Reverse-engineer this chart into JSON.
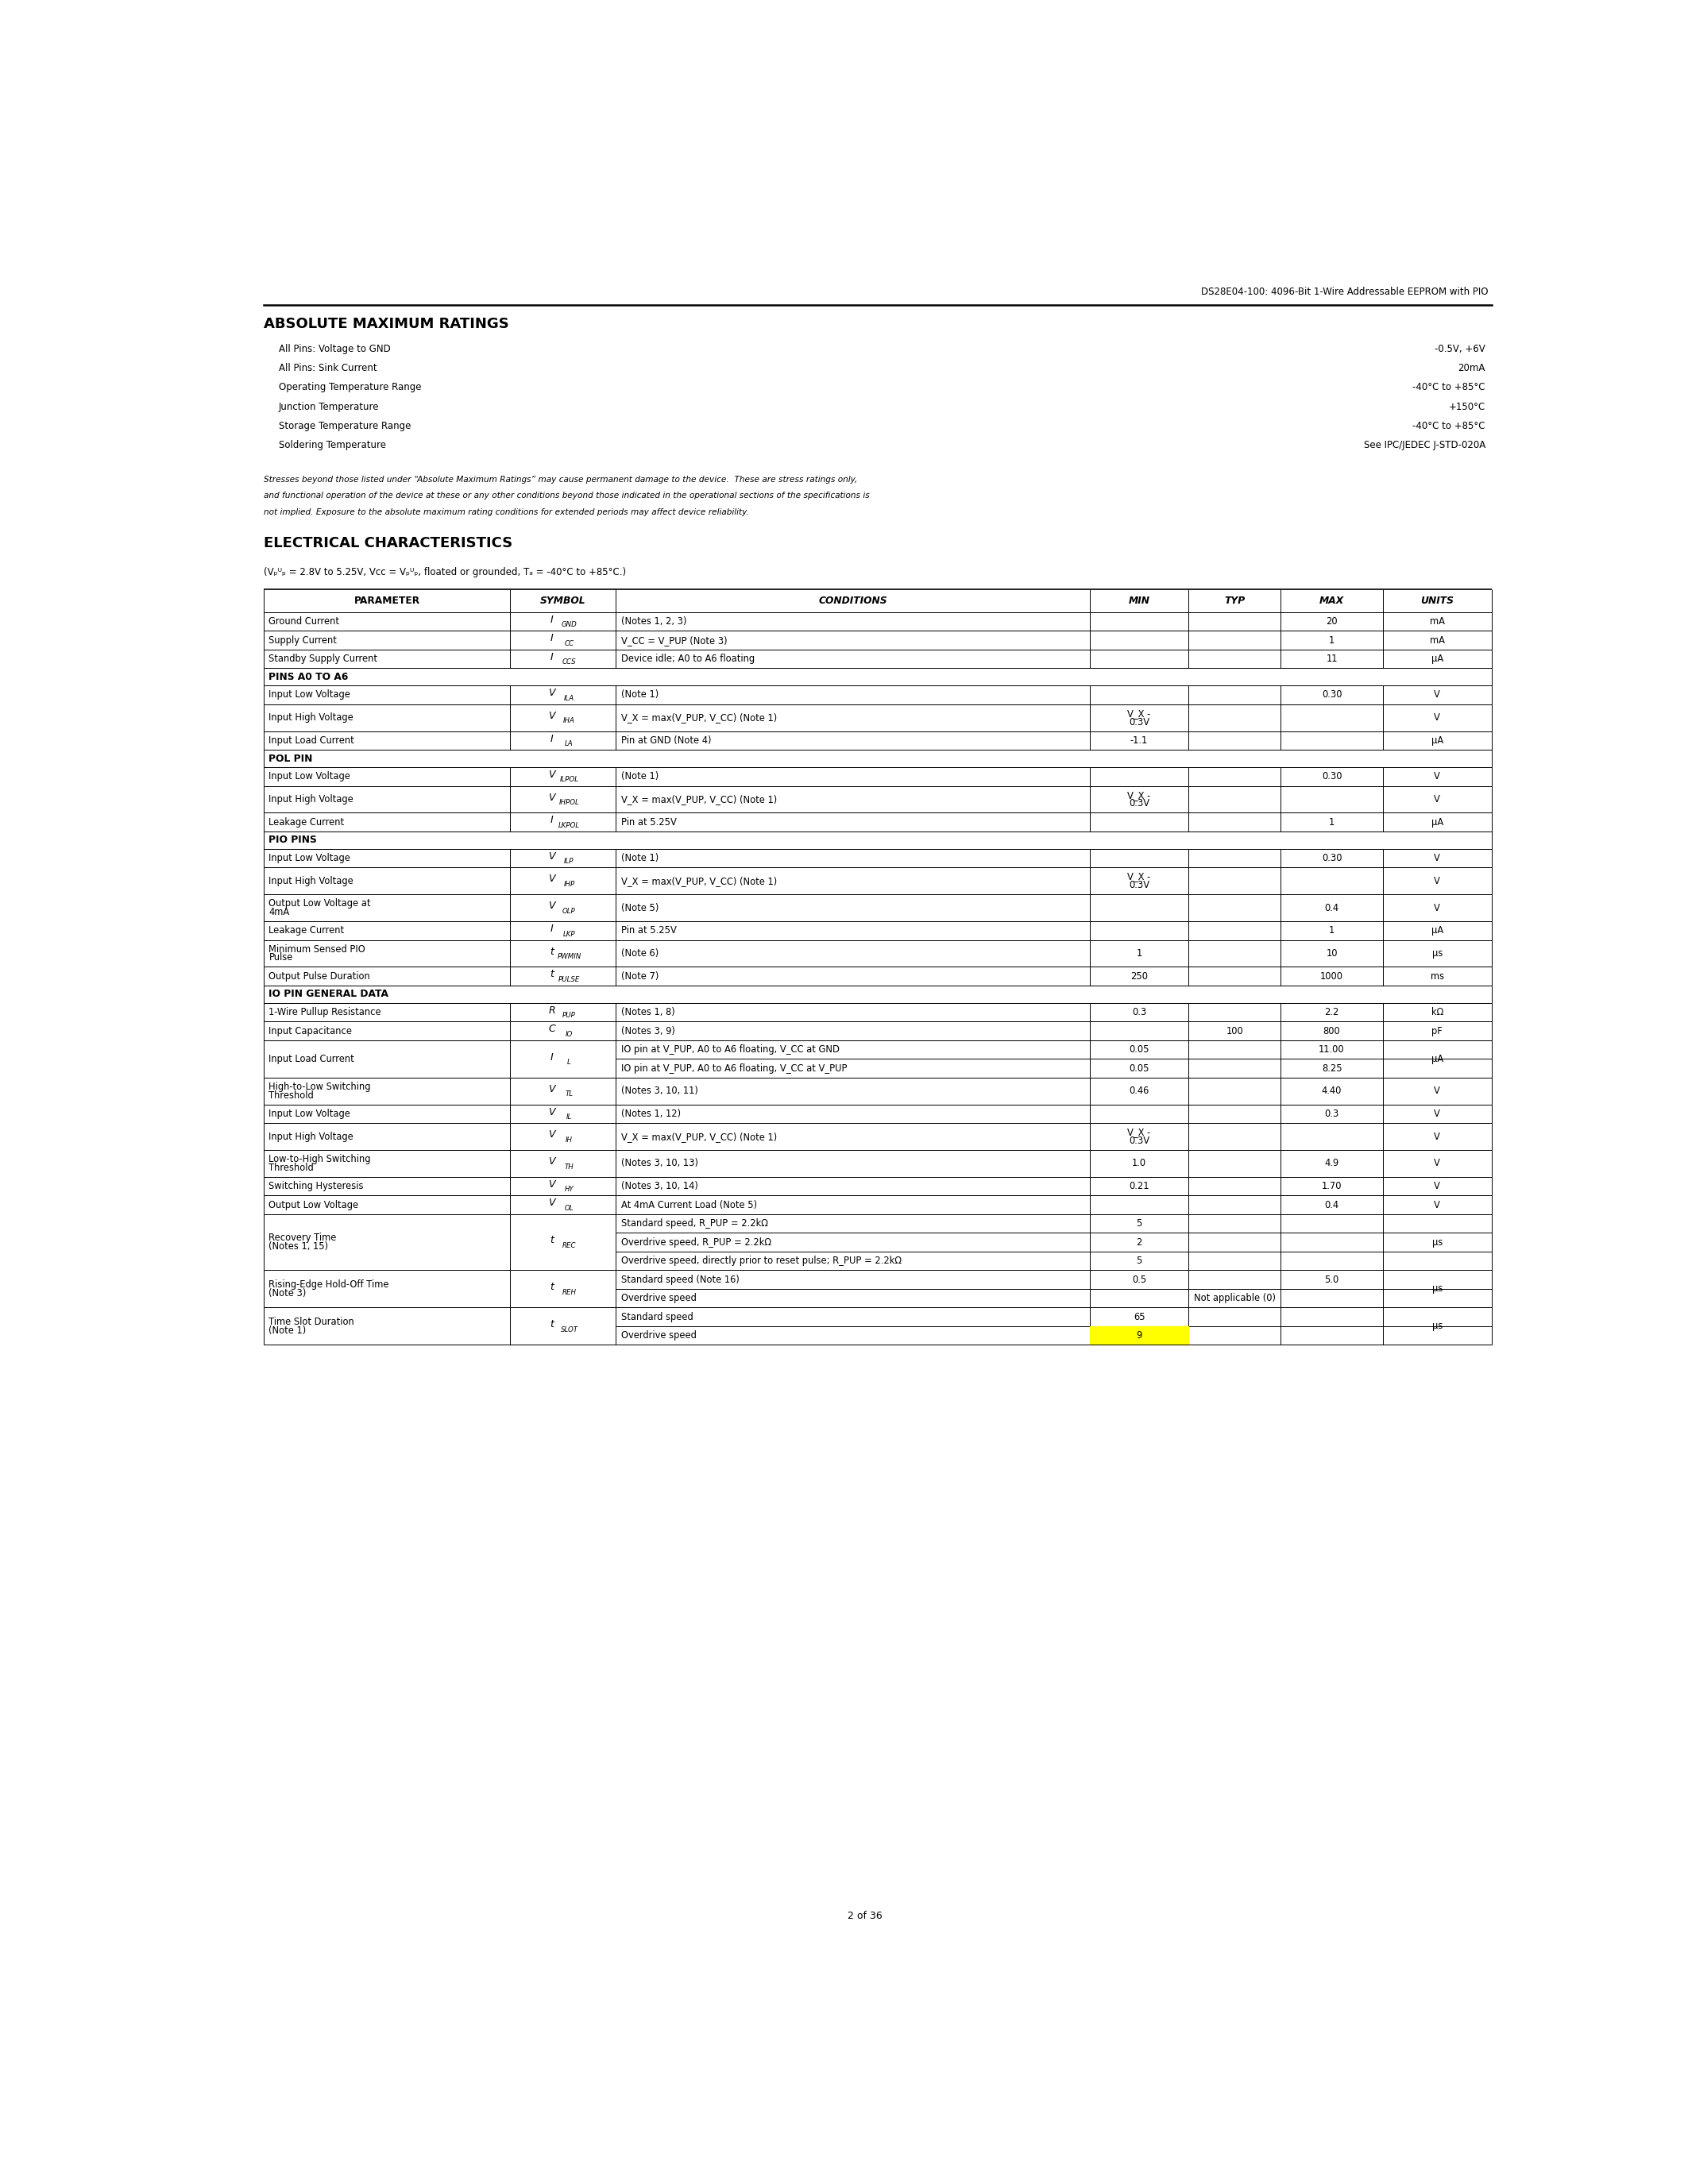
{
  "header_title": "DS28E04-100: 4096-Bit 1-Wire Addressable EEPROM with PIO",
  "page_number": "2 of 36",
  "section1_title": "ABSOLUTE MAXIMUM RATINGS",
  "abs_max_rows": [
    [
      "All Pins: Voltage to GND",
      "-0.5V, +6V"
    ],
    [
      "All Pins: Sink Current",
      "20mA"
    ],
    [
      "Operating Temperature Range",
      "-40°C to +85°C"
    ],
    [
      "Junction Temperature",
      "+150°C"
    ],
    [
      "Storage Temperature Range",
      "-40°C to +85°C"
    ],
    [
      "Soldering Temperature",
      "See IPC/JEDEC J-STD-020A"
    ]
  ],
  "stress_lines": [
    "Stresses beyond those listed under “Absolute Maximum Ratings” may cause permanent damage to the device.  These are stress ratings only,",
    "and functional operation of the device at these or any other conditions beyond those indicated in the operational sections of the specifications is",
    "not implied. Exposure to the absolute maximum rating conditions for extended periods may affect device reliability."
  ],
  "section2_title": "ELECTRICAL CHARACTERISTICS",
  "elec_subtitle": "(V_PUP = 2.8V to 5.25V, V_CC = V_PUP, floated or grounded, T_A = -40°C to +85°C.)",
  "table_col_headers": [
    "PARAMETER",
    "SYMBOL",
    "CONDITIONS",
    "MIN",
    "TYP",
    "MAX",
    "UNITS"
  ],
  "table_rows": [
    {
      "param": "Ground Current",
      "sym_base": "I",
      "sym_sub": "GND",
      "cond": "(Notes 1, 2, 3)",
      "min": "",
      "typ": "",
      "max": "20",
      "units": "mA",
      "section": false,
      "span": 1,
      "highlight": false
    },
    {
      "param": "Supply Current",
      "sym_base": "I",
      "sym_sub": "CC",
      "cond": "V_CC = V_PUP (Note 3)",
      "min": "",
      "typ": "",
      "max": "1",
      "units": "mA",
      "section": false,
      "span": 1,
      "highlight": false
    },
    {
      "param": "Standby Supply Current",
      "sym_base": "I",
      "sym_sub": "CCS",
      "cond": "Device idle; A0 to A6 floating",
      "min": "",
      "typ": "",
      "max": "11",
      "units": "μA",
      "section": false,
      "span": 1,
      "highlight": false
    },
    {
      "param": "PINS A0 TO A6",
      "sym_base": "",
      "sym_sub": "",
      "cond": "",
      "min": "",
      "typ": "",
      "max": "",
      "units": "",
      "section": true,
      "span": 1,
      "highlight": false
    },
    {
      "param": "Input Low Voltage",
      "sym_base": "V",
      "sym_sub": "ILA",
      "cond": "(Note 1)",
      "min": "",
      "typ": "",
      "max": "0.30",
      "units": "V",
      "section": false,
      "span": 1,
      "highlight": false
    },
    {
      "param": "Input High Voltage",
      "sym_base": "V",
      "sym_sub": "IHA",
      "cond": "V_X = max(V_PUP, V_CC) (Note 1)",
      "min": "V_X -\n0.3V",
      "typ": "",
      "max": "",
      "units": "V",
      "section": false,
      "span": 1,
      "highlight": false
    },
    {
      "param": "Input Load Current",
      "sym_base": "I",
      "sym_sub": "LA",
      "cond": "Pin at GND (Note 4)",
      "min": "-1.1",
      "typ": "",
      "max": "",
      "units": "μA",
      "section": false,
      "span": 1,
      "highlight": false
    },
    {
      "param": "POL PIN",
      "sym_base": "",
      "sym_sub": "",
      "cond": "",
      "min": "",
      "typ": "",
      "max": "",
      "units": "",
      "section": true,
      "span": 1,
      "highlight": false
    },
    {
      "param": "Input Low Voltage",
      "sym_base": "V",
      "sym_sub": "ILPOL",
      "cond": "(Note 1)",
      "min": "",
      "typ": "",
      "max": "0.30",
      "units": "V",
      "section": false,
      "span": 1,
      "highlight": false
    },
    {
      "param": "Input High Voltage",
      "sym_base": "V",
      "sym_sub": "IHPOL",
      "cond": "V_X = max(V_PUP, V_CC) (Note 1)",
      "min": "V_X -\n0.3V",
      "typ": "",
      "max": "",
      "units": "V",
      "section": false,
      "span": 1,
      "highlight": false
    },
    {
      "param": "Leakage Current",
      "sym_base": "I",
      "sym_sub": "LKPOL",
      "cond": "Pin at 5.25V",
      "min": "",
      "typ": "",
      "max": "1",
      "units": "μA",
      "section": false,
      "span": 1,
      "highlight": false
    },
    {
      "param": "PIO PINS",
      "sym_base": "",
      "sym_sub": "",
      "cond": "",
      "min": "",
      "typ": "",
      "max": "",
      "units": "",
      "section": true,
      "span": 1,
      "highlight": false
    },
    {
      "param": "Input Low Voltage",
      "sym_base": "V",
      "sym_sub": "ILP",
      "cond": "(Note 1)",
      "min": "",
      "typ": "",
      "max": "0.30",
      "units": "V",
      "section": false,
      "span": 1,
      "highlight": false
    },
    {
      "param": "Input High Voltage",
      "sym_base": "V",
      "sym_sub": "IHP",
      "cond": "V_X = max(V_PUP, V_CC) (Note 1)",
      "min": "V_X -\n0.3V",
      "typ": "",
      "max": "",
      "units": "V",
      "section": false,
      "span": 1,
      "highlight": false
    },
    {
      "param": "Output Low Voltage at\n4mA",
      "sym_base": "V",
      "sym_sub": "OLP",
      "cond": "(Note 5)",
      "min": "",
      "typ": "",
      "max": "0.4",
      "units": "V",
      "section": false,
      "span": 1,
      "highlight": false
    },
    {
      "param": "Leakage Current",
      "sym_base": "I",
      "sym_sub": "LKP",
      "cond": "Pin at 5.25V",
      "min": "",
      "typ": "",
      "max": "1",
      "units": "μA",
      "section": false,
      "span": 1,
      "highlight": false
    },
    {
      "param": "Minimum Sensed PIO\nPulse",
      "sym_base": "t",
      "sym_sub": "PWMIN",
      "cond": "(Note 6)",
      "min": "1",
      "typ": "",
      "max": "10",
      "units": "μs",
      "section": false,
      "span": 1,
      "highlight": false
    },
    {
      "param": "Output Pulse Duration",
      "sym_base": "t",
      "sym_sub": "PULSE",
      "cond": "(Note 7)",
      "min": "250",
      "typ": "",
      "max": "1000",
      "units": "ms",
      "section": false,
      "span": 1,
      "highlight": false
    },
    {
      "param": "IO PIN GENERAL DATA",
      "sym_base": "",
      "sym_sub": "",
      "cond": "",
      "min": "",
      "typ": "",
      "max": "",
      "units": "",
      "section": true,
      "span": 1,
      "highlight": false
    },
    {
      "param": "1-Wire Pullup Resistance",
      "sym_base": "R",
      "sym_sub": "PUP",
      "cond": "(Notes 1, 8)",
      "min": "0.3",
      "typ": "",
      "max": "2.2",
      "units": "kΩ",
      "section": false,
      "span": 1,
      "highlight": false
    },
    {
      "param": "Input Capacitance",
      "sym_base": "C",
      "sym_sub": "IO",
      "cond": "(Notes 3, 9)",
      "min": "",
      "typ": "100",
      "max": "800",
      "units": "pF",
      "section": false,
      "span": 1,
      "highlight": false
    },
    {
      "param": "Input Load Current",
      "sym_base": "I",
      "sym_sub": "L",
      "sub_rows": [
        {
          "cond": "IO pin at V_PUP, A0 to A6 floating, V_CC at GND",
          "min": "0.05",
          "typ": "",
          "max": "11.00",
          "highlight": false
        },
        {
          "cond": "IO pin at V_PUP, A0 to A6 floating, V_CC at V_PUP",
          "min": "0.05",
          "typ": "",
          "max": "8.25",
          "highlight": false
        }
      ],
      "units": "μA",
      "section": false,
      "span": 2,
      "highlight": false
    },
    {
      "param": "High-to-Low Switching\nThreshold",
      "sym_base": "V",
      "sym_sub": "TL",
      "cond": "(Notes 3, 10, 11)",
      "min": "0.46",
      "typ": "",
      "max": "4.40",
      "units": "V",
      "section": false,
      "span": 1,
      "highlight": false
    },
    {
      "param": "Input Low Voltage",
      "sym_base": "V",
      "sym_sub": "IL",
      "cond": "(Notes 1, 12)",
      "min": "",
      "typ": "",
      "max": "0.3",
      "units": "V",
      "section": false,
      "span": 1,
      "highlight": false
    },
    {
      "param": "Input High Voltage",
      "sym_base": "V",
      "sym_sub": "IH",
      "cond": "V_X = max(V_PUP, V_CC) (Note 1)",
      "min": "V_X -\n0.3V",
      "typ": "",
      "max": "",
      "units": "V",
      "section": false,
      "span": 1,
      "highlight": false
    },
    {
      "param": "Low-to-High Switching\nThreshold",
      "sym_base": "V",
      "sym_sub": "TH",
      "cond": "(Notes 3, 10, 13)",
      "min": "1.0",
      "typ": "",
      "max": "4.9",
      "units": "V",
      "section": false,
      "span": 1,
      "highlight": false
    },
    {
      "param": "Switching Hysteresis",
      "sym_base": "V",
      "sym_sub": "HY",
      "cond": "(Notes 3, 10, 14)",
      "min": "0.21",
      "typ": "",
      "max": "1.70",
      "units": "V",
      "section": false,
      "span": 1,
      "highlight": false
    },
    {
      "param": "Output Low Voltage",
      "sym_base": "V",
      "sym_sub": "OL",
      "cond": "At 4mA Current Load (Note 5)",
      "min": "",
      "typ": "",
      "max": "0.4",
      "units": "V",
      "section": false,
      "span": 1,
      "highlight": false
    },
    {
      "param": "Recovery Time\n(Notes 1, 15)",
      "sym_base": "t",
      "sym_sub": "REC",
      "sub_rows": [
        {
          "cond": "Standard speed, R_PUP = 2.2kΩ",
          "min": "5",
          "typ": "",
          "max": "",
          "highlight": false
        },
        {
          "cond": "Overdrive speed, R_PUP = 2.2kΩ",
          "min": "2",
          "typ": "",
          "max": "",
          "highlight": false
        },
        {
          "cond": "Overdrive speed, directly prior to reset pulse; R_PUP = 2.2kΩ",
          "min": "5",
          "typ": "",
          "max": "",
          "highlight": false
        }
      ],
      "units": "μs",
      "section": false,
      "span": 3,
      "highlight": false
    },
    {
      "param": "Rising-Edge Hold-Off Time\n(Note 3)",
      "sym_base": "t",
      "sym_sub": "REH",
      "sub_rows": [
        {
          "cond": "Standard speed (Note 16)",
          "min": "0.5",
          "typ": "",
          "max": "5.0",
          "highlight": false
        },
        {
          "cond": "Overdrive speed",
          "min": "",
          "typ": "Not applicable (0)",
          "max": "",
          "highlight": false
        }
      ],
      "units": "μs",
      "section": false,
      "span": 2,
      "highlight": false
    },
    {
      "param": "Time Slot Duration\n(Note 1)",
      "sym_base": "t",
      "sym_sub": "SLOT",
      "sub_rows": [
        {
          "cond": "Standard speed",
          "min": "65",
          "typ": "",
          "max": "",
          "highlight": false
        },
        {
          "cond": "Overdrive speed",
          "min": "9",
          "typ": "",
          "max": "",
          "highlight": true
        }
      ],
      "units": "μs",
      "section": false,
      "span": 2,
      "highlight": false
    }
  ]
}
